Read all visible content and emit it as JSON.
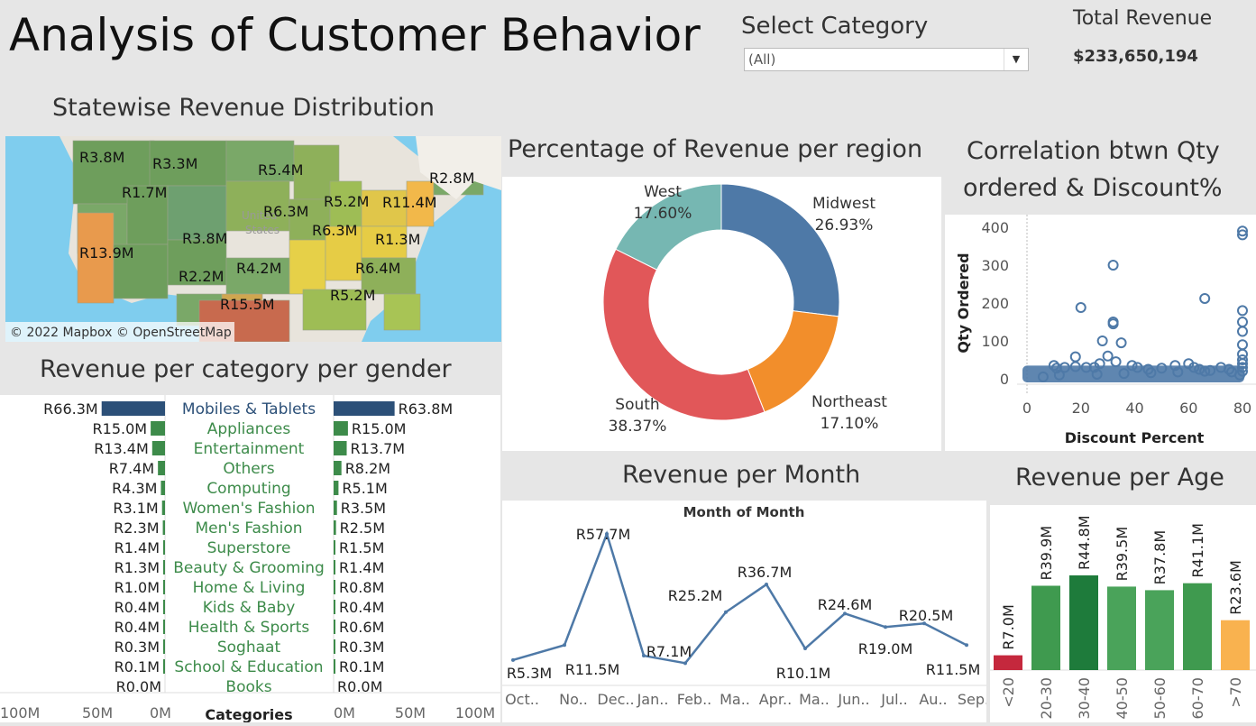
{
  "dashboard": {
    "title": "Analysis of Customer Behavior",
    "filter": {
      "label": "Select Category",
      "value": "(All)"
    },
    "total": {
      "label": "Total Revenue",
      "value": "$233,650,194"
    }
  },
  "map": {
    "title": "Statewise Revenue Distribution",
    "attribution": "© 2022 Mapbox © OpenStreetMap",
    "country_label_1": "United",
    "country_label_2": "States",
    "labels": [
      "R3.8M",
      "R3.3M",
      "R1.7M",
      "R5.4M",
      "R2.8M",
      "R5.2M",
      "R11.4M",
      "R6.3M",
      "R6.3M",
      "R3.8M",
      "R1.3M",
      "R13.9M",
      "R4.2M",
      "R6.4M",
      "R2.2M",
      "R15.5M",
      "R5.2M"
    ]
  },
  "gender_chart": {
    "title": "Revenue per category per gender",
    "axis_title": "Categories",
    "left_ticks": [
      "100M",
      "50M",
      "0M"
    ],
    "right_ticks": [
      "0M",
      "50M",
      "100M"
    ],
    "categories": [
      "Mobiles & Tablets",
      "Appliances",
      "Entertainment",
      "Others",
      "Computing",
      "Women's Fashion",
      "Men's Fashion",
      "Superstore",
      "Beauty & Grooming",
      "Home & Living",
      "Kids & Baby",
      "Health & Sports",
      "Soghaat",
      "School & Education",
      "Books"
    ],
    "left_labels": [
      "R66.3M",
      "R15.0M",
      "R13.4M",
      "R7.4M",
      "R4.3M",
      "R3.1M",
      "R2.3M",
      "R1.4M",
      "R1.3M",
      "R1.0M",
      "R0.4M",
      "R0.4M",
      "R0.3M",
      "R0.1M",
      "R0.0M"
    ],
    "right_labels": [
      "R63.8M",
      "R15.0M",
      "R13.7M",
      "R8.2M",
      "R5.1M",
      "R3.5M",
      "R2.5M",
      "R1.5M",
      "R1.4M",
      "R0.8M",
      "R0.4M",
      "R0.6M",
      "R0.3M",
      "R0.1M",
      "R0.0M"
    ]
  },
  "region_chart": {
    "title": "Percentage of Revenue per region",
    "segments": [
      {
        "name": "Midwest",
        "label": "26.93%",
        "color": "#4e79a7"
      },
      {
        "name": "Northeast",
        "label": "17.10%",
        "color": "#f28e2b"
      },
      {
        "name": "South",
        "label": "38.37%",
        "color": "#e15759"
      },
      {
        "name": "West",
        "label": "17.60%",
        "color": "#76b7b2"
      }
    ]
  },
  "scatter_chart": {
    "title_line1": "Correlation btwn Qty",
    "title_line2": "ordered & Discount%",
    "xlabel": "Discount Percent",
    "ylabel": "Qty Ordered",
    "x_ticks": [
      "0",
      "20",
      "40",
      "60",
      "80"
    ],
    "y_ticks": [
      "400",
      "300",
      "200",
      "100",
      "0"
    ]
  },
  "month_chart": {
    "title": "Revenue per Month",
    "subtitle": "Month of Month",
    "months": [
      "Oct..",
      "No..",
      "Dec..",
      "Jan..",
      "Feb..",
      "Ma..",
      "Apr..",
      "Ma..",
      "Jun..",
      "Jul..",
      "Au..",
      "Sep.."
    ],
    "labels": [
      "R5.3M",
      "R11.5M",
      "R57.7M",
      "R7.1M",
      "",
      "",
      "R36.7M",
      "R10.1M",
      "R24.6M",
      "R19.0M",
      "R20.5M",
      "R11.5M"
    ],
    "extra_label": "R25.2M"
  },
  "age_chart": {
    "title": "Revenue per Age",
    "groups": [
      "<20",
      "20-30",
      "30-40",
      "40-50",
      "50-60",
      "60-70",
      ">70"
    ],
    "labels": [
      "R7.0M",
      "R39.9M",
      "R44.8M",
      "R39.5M",
      "R37.8M",
      "R41.1M",
      "R23.6M"
    ],
    "colors": {
      "low": "#c5283d",
      "high": "#1e7b3b",
      "mid": "#3f9a4f",
      "light": "#4aa35a",
      "orange": "#f9b24f"
    }
  },
  "chart_data": [
    {
      "type": "bar",
      "title": "Revenue per category per gender",
      "xlabel": "",
      "ylabel": "Categories",
      "categories": [
        "Mobiles & Tablets",
        "Appliances",
        "Entertainment",
        "Others",
        "Computing",
        "Women's Fashion",
        "Men's Fashion",
        "Superstore",
        "Beauty & Grooming",
        "Home & Living",
        "Kids & Baby",
        "Health & Sports",
        "Soghaat",
        "School & Education",
        "Books"
      ],
      "series": [
        {
          "values": [
            66.3,
            15.0,
            13.4,
            7.4,
            4.3,
            3.1,
            2.3,
            1.4,
            1.3,
            1.0,
            0.4,
            0.4,
            0.3,
            0.1,
            0.0
          ]
        },
        {
          "values": [
            63.8,
            15.0,
            13.7,
            8.2,
            5.1,
            3.5,
            2.5,
            1.5,
            1.4,
            0.8,
            0.4,
            0.6,
            0.3,
            0.1,
            0.0
          ]
        }
      ],
      "xlim": [
        0,
        100
      ]
    },
    {
      "type": "pie",
      "title": "Percentage of Revenue per region",
      "categories": [
        "Midwest",
        "Northeast",
        "South",
        "West"
      ],
      "values": [
        26.93,
        17.1,
        38.37,
        17.6
      ]
    },
    {
      "type": "scatter",
      "title": "Correlation btwn Qty ordered & Discount%",
      "xlabel": "Discount Percent",
      "ylabel": "Qty Ordered",
      "xlim": [
        0,
        80
      ],
      "ylim": [
        0,
        400
      ],
      "points": [
        [
          20,
          188
        ],
        [
          32,
          300
        ],
        [
          32,
          150
        ],
        [
          32,
          145
        ],
        [
          28,
          100
        ],
        [
          35,
          95
        ],
        [
          18,
          58
        ],
        [
          30,
          60
        ],
        [
          66,
          212
        ],
        [
          80,
          390
        ],
        [
          80,
          380
        ],
        [
          80,
          180
        ],
        [
          80,
          150
        ],
        [
          80,
          125
        ],
        [
          80,
          90
        ],
        [
          80,
          65
        ],
        [
          80,
          50
        ],
        [
          80,
          40
        ],
        [
          80,
          30
        ],
        [
          80,
          20
        ],
        [
          79,
          10
        ],
        [
          25,
          30
        ],
        [
          27,
          40
        ],
        [
          33,
          45
        ],
        [
          39,
          35
        ],
        [
          41,
          30
        ],
        [
          45,
          25
        ],
        [
          50,
          28
        ],
        [
          55,
          35
        ],
        [
          60,
          40
        ],
        [
          62,
          30
        ],
        [
          64,
          25
        ],
        [
          68,
          22
        ],
        [
          72,
          30
        ],
        [
          75,
          25
        ],
        [
          10,
          35
        ],
        [
          11,
          28
        ],
        [
          14,
          30
        ],
        [
          18,
          32
        ],
        [
          22,
          30
        ],
        [
          6,
          5
        ],
        [
          12,
          10
        ],
        [
          26,
          12
        ],
        [
          36,
          14
        ],
        [
          46,
          16
        ],
        [
          56,
          18
        ],
        [
          66,
          20
        ],
        [
          76,
          18
        ]
      ]
    },
    {
      "type": "line",
      "title": "Revenue per Month",
      "xlabel": "Month of Month",
      "ylabel": "",
      "x": [
        "Oct..",
        "No..",
        "Dec..",
        "Jan..",
        "Feb..",
        "Ma..",
        "Apr..",
        "Ma..",
        "Jun..",
        "Jul..",
        "Au..",
        "Sep.."
      ],
      "values": [
        5.3,
        11.5,
        57.7,
        7.1,
        4.0,
        25.2,
        36.7,
        10.1,
        24.6,
        19.0,
        20.5,
        11.5
      ]
    },
    {
      "type": "bar",
      "title": "Revenue per Age",
      "categories": [
        "<20",
        "20-30",
        "30-40",
        "40-50",
        "50-60",
        "60-70",
        ">70"
      ],
      "values": [
        7.0,
        39.9,
        44.8,
        39.5,
        37.8,
        41.1,
        23.6
      ]
    }
  ]
}
